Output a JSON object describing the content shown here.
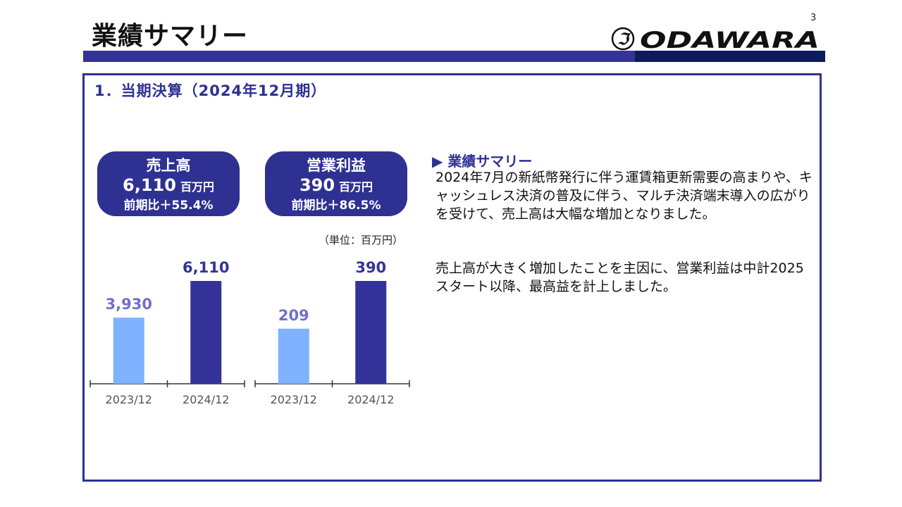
{
  "header": {
    "title": "業績サマリー",
    "page_number": "3",
    "logo_text": "ODAWARA",
    "logo_mark": "ℑ"
  },
  "section": {
    "title": "1．当期決算（2024年12月期）"
  },
  "kpis": [
    {
      "label": "売上高",
      "value": "6,110",
      "unit": "百万円",
      "growth": "前期比＋55.4%"
    },
    {
      "label": "営業利益",
      "value": "390",
      "unit": "百万円",
      "growth": "前期比＋86.5%"
    }
  ],
  "unit_note": "（単位：百万円）",
  "colors": {
    "navy": "#2e3192",
    "bar_prev": "#7fb2ff",
    "bar_curr": "#333399",
    "label_prev": "#7070cc"
  },
  "chart_data": [
    {
      "type": "bar",
      "categories": [
        "2023/12",
        "2024/12"
      ],
      "values": [
        3930,
        6110
      ],
      "value_labels": [
        "3,930",
        "6,110"
      ],
      "ylim": [
        0,
        6110
      ]
    },
    {
      "type": "bar",
      "categories": [
        "2023/12",
        "2024/12"
      ],
      "values": [
        209,
        390
      ],
      "value_labels": [
        "209",
        "390"
      ],
      "ylim": [
        0,
        390
      ]
    }
  ],
  "summary": {
    "heading": "▶ 業績サマリー",
    "paragraph1": "2024年7月の新紙幣発行に伴う運賃箱更新需要の高まりや、キャッシュレス決済の普及に伴う、マルチ決済端末導入の広がりを受けて、売上高は大幅な増加となりました。",
    "paragraph2": "売上高が大きく増加したことを主因に、営業利益は中計2025スタート以降、最高益を計上しました。"
  }
}
